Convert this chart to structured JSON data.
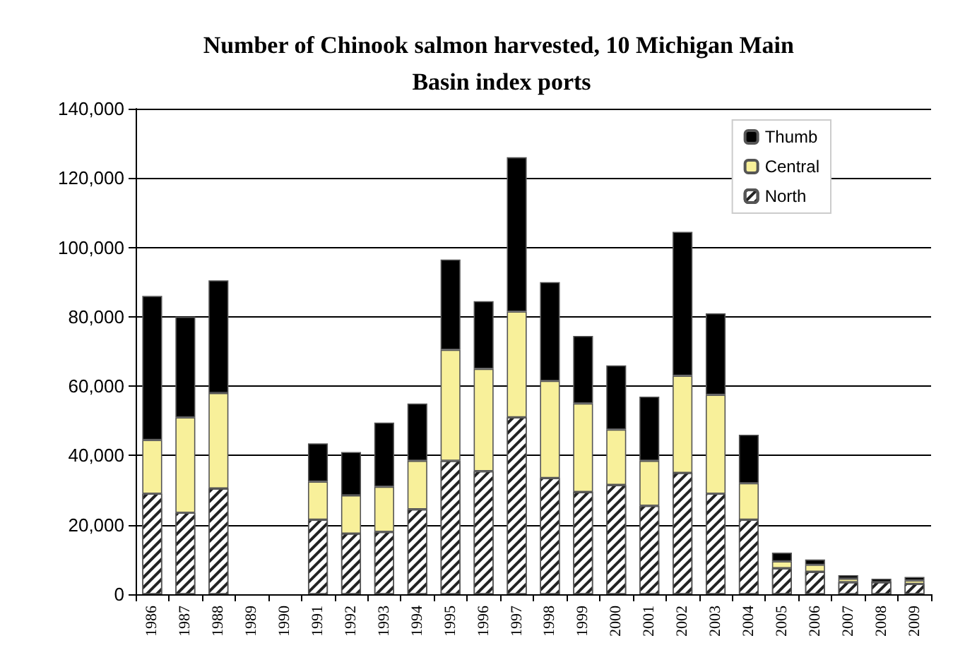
{
  "chart_data": {
    "type": "bar",
    "title": "Number of Chinook salmon harvested, 10 Michigan Main Basin index ports",
    "categories": [
      "1986",
      "1987",
      "1988",
      "1989",
      "1990",
      "1991",
      "1992",
      "1993",
      "1994",
      "1995",
      "1996",
      "1997",
      "1998",
      "1999",
      "2000",
      "2001",
      "2002",
      "2003",
      "2004",
      "2005",
      "2006",
      "2007",
      "2008",
      "2009"
    ],
    "stacked": true,
    "series": [
      {
        "name": "North",
        "color": "#ffffff",
        "values": [
          29000,
          23500,
          30500,
          null,
          null,
          21500,
          17500,
          18000,
          24500,
          38500,
          35500,
          51000,
          33500,
          29500,
          31500,
          25500,
          35000,
          29000,
          21500,
          7500,
          6500,
          3500,
          3500,
          3000
        ]
      },
      {
        "name": "Central",
        "color": "#f8f09a",
        "values": [
          15500,
          27500,
          27500,
          null,
          null,
          11000,
          11000,
          13000,
          14000,
          32000,
          29500,
          30500,
          28000,
          25500,
          16000,
          13000,
          28000,
          28500,
          10500,
          2000,
          2000,
          1000,
          0,
          1000
        ]
      },
      {
        "name": "Thumb",
        "color": "#000000",
        "values": [
          41500,
          29000,
          32500,
          null,
          null,
          11000,
          12500,
          18500,
          16500,
          26000,
          19500,
          44500,
          28500,
          19500,
          18500,
          18500,
          41500,
          23500,
          14000,
          2500,
          1500,
          1000,
          1000,
          1000
        ]
      }
    ],
    "ylim": [
      0,
      140000
    ],
    "yticks": [
      0,
      {
        "value": 20000,
        "label": "20,000"
      },
      {
        "value": 40000,
        "label": "40,000"
      },
      {
        "value": 60000,
        "label": "60,000"
      },
      {
        "value": 80000,
        "label": "80,000"
      },
      {
        "value": 100000,
        "label": "100,000"
      },
      {
        "value": 120000,
        "label": "120,000"
      },
      {
        "value": 140000,
        "label": "140,000"
      }
    ],
    "grid": "y",
    "legend": "top right"
  }
}
